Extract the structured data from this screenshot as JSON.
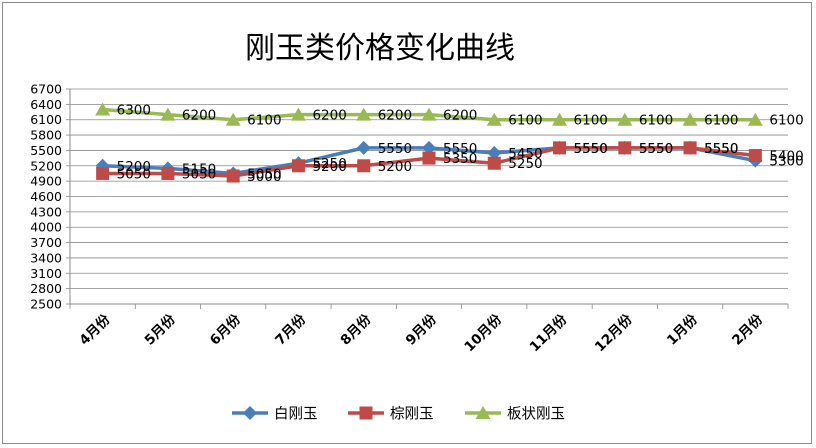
{
  "chart_data": {
    "type": "line",
    "title": "刚玉类价格变化曲线",
    "xlabel": "",
    "ylabel": "",
    "categories": [
      "4月份",
      "5月份",
      "6月份",
      "7月份",
      "8月份",
      "9月份",
      "10月份",
      "11月份",
      "12月份",
      "1月份",
      "2月份"
    ],
    "yticks": [
      "2500",
      "2800",
      "3100",
      "3400",
      "3700",
      "4000",
      "4300",
      "4600",
      "4900",
      "5200",
      "5500",
      "5800",
      "6100",
      "6400",
      "6700"
    ],
    "ylim": [
      2500,
      6700
    ],
    "grid": true,
    "legend_position": "bottom",
    "series": [
      {
        "name": "白刚玉",
        "color": "#4a7ebb",
        "marker": "diamond",
        "values": [
          5200,
          5150,
          5050,
          5250,
          5550,
          5550,
          5450,
          5550,
          5550,
          5550,
          5300
        ],
        "labels": [
          "5200",
          "5150",
          "5050",
          "5250",
          "5550",
          "5550",
          "5450",
          "5550",
          "5550",
          "5550",
          "5300"
        ]
      },
      {
        "name": "棕刚玉",
        "color": "#be4b48",
        "marker": "square",
        "values": [
          5050,
          5050,
          5000,
          5200,
          5200,
          5350,
          5250,
          5550,
          5550,
          5550,
          5400
        ],
        "labels": [
          "5050",
          "5050",
          "5000",
          "5200",
          "5200",
          "5350",
          "5250",
          "5550",
          "5550",
          "5550",
          "5400"
        ]
      },
      {
        "name": "板状刚玉",
        "color": "#98b954",
        "marker": "triangle",
        "values": [
          6300,
          6200,
          6100,
          6200,
          6200,
          6200,
          6100,
          6100,
          6100,
          6100,
          6100
        ],
        "labels": [
          "6300",
          "6200",
          "6100",
          "6200",
          "6200",
          "6200",
          "6100",
          "6100",
          "6100",
          "6100",
          "6100"
        ]
      }
    ]
  }
}
